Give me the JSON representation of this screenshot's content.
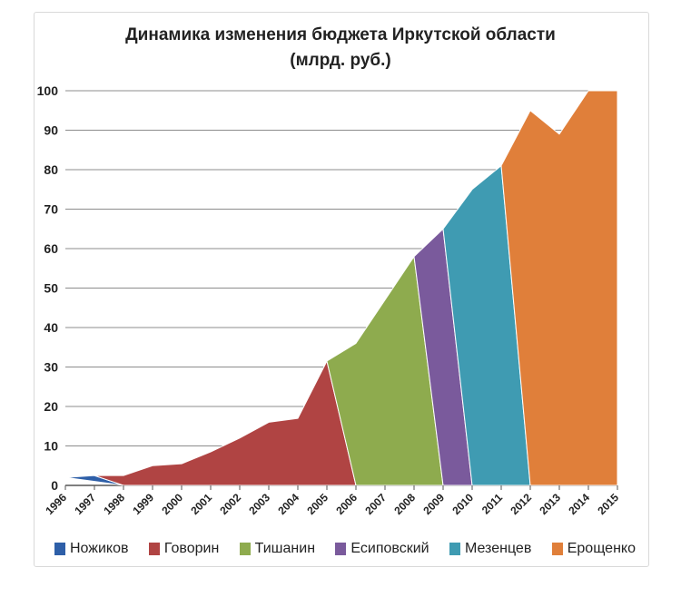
{
  "chart_data": {
    "type": "area",
    "title": "Динамика изменения бюджета Иркутской области",
    "subtitle": "(млрд. руб.)",
    "xlabel": "",
    "ylabel": "",
    "ylim": [
      0,
      100
    ],
    "yticks": [
      "0",
      "10",
      "20",
      "30",
      "40",
      "50",
      "60",
      "70",
      "80",
      "90",
      "100"
    ],
    "categories": [
      "1996",
      "1997",
      "1998",
      "1999",
      "2000",
      "2001",
      "2002",
      "2003",
      "2004",
      "2005",
      "2006",
      "2007",
      "2008",
      "2009",
      "2010",
      "2011",
      "2012",
      "2013",
      "2014",
      "2015"
    ],
    "grid": true,
    "legend_position": "bottom",
    "series": [
      {
        "name": "Ножиков",
        "color": "#2e5fa8",
        "points": [
          [
            "1996",
            2
          ],
          [
            "1997",
            2.5
          ],
          [
            "1998",
            0
          ]
        ]
      },
      {
        "name": "Говорин",
        "color": "#b04443",
        "points": [
          [
            "1997",
            2.5
          ],
          [
            "1998",
            2.5
          ],
          [
            "1999",
            5
          ],
          [
            "2000",
            5.5
          ],
          [
            "2001",
            8.5
          ],
          [
            "2002",
            12
          ],
          [
            "2003",
            16
          ],
          [
            "2004",
            17
          ],
          [
            "2005",
            31.5
          ],
          [
            "2006",
            0
          ],
          [
            "1998",
            0
          ]
        ]
      },
      {
        "name": "Тишанин",
        "color": "#8eab4e",
        "points": [
          [
            "2005",
            31.5
          ],
          [
            "2006",
            36
          ],
          [
            "2007",
            47
          ],
          [
            "2008",
            58
          ],
          [
            "2009",
            0
          ],
          [
            "2006",
            0
          ]
        ]
      },
      {
        "name": "Есиповский",
        "color": "#7a5a9c",
        "points": [
          [
            "2008",
            58
          ],
          [
            "2009",
            65
          ],
          [
            "2010",
            0
          ],
          [
            "2009",
            0
          ]
        ]
      },
      {
        "name": "Мезенцев",
        "color": "#3f9bb2",
        "points": [
          [
            "2009",
            65
          ],
          [
            "2010",
            75
          ],
          [
            "2011",
            81
          ],
          [
            "2012",
            0
          ],
          [
            "2010",
            0
          ]
        ]
      },
      {
        "name": "Ерощенко",
        "color": "#e07f3a",
        "points": [
          [
            "2011",
            81
          ],
          [
            "2012",
            95
          ],
          [
            "2013",
            89
          ],
          [
            "2014",
            100
          ],
          [
            "2015",
            100
          ],
          [
            "2015",
            0
          ],
          [
            "2012",
            0
          ]
        ]
      }
    ]
  }
}
